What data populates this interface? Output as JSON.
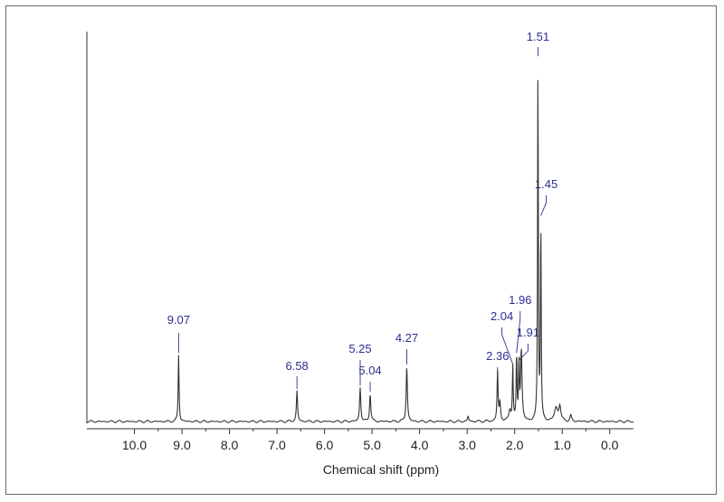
{
  "chart_data": {
    "type": "line",
    "title": "",
    "xlabel": "Chemical shift (ppm)",
    "ylabel": "",
    "x_reversed": true,
    "xlim": [
      11.0,
      -0.5
    ],
    "ylim": [
      0,
      1.0
    ],
    "x_ticks": [
      10.0,
      9.0,
      8.0,
      7.0,
      6.0,
      5.0,
      4.0,
      3.0,
      2.0,
      1.0,
      0.0
    ],
    "x_tick_labels": [
      "10.0",
      "9.0",
      "8.0",
      "7.0",
      "6.0",
      "5.0",
      "4.0",
      "3.0",
      "2.0",
      "1.0",
      "0.0"
    ],
    "grid": false,
    "line_color": "#333333",
    "label_color": "#2b2f8f",
    "peaks": [
      {
        "x": 9.07,
        "label": "9.07",
        "height": 0.18,
        "width": 0.022
      },
      {
        "x": 6.58,
        "label": "6.58",
        "height": 0.083,
        "width": 0.028
      },
      {
        "x": 5.25,
        "label": "5.25",
        "height": 0.092,
        "width": 0.03
      },
      {
        "x": 5.04,
        "label": "5.04",
        "height": 0.076,
        "width": 0.03
      },
      {
        "x": 4.27,
        "label": "4.27",
        "height": 0.149,
        "width": 0.03
      },
      {
        "x": 2.36,
        "label": "2.36",
        "height": 0.134,
        "width": 0.025
      },
      {
        "x": 2.04,
        "label": "2.04",
        "height": 0.15,
        "width": 0.02
      },
      {
        "x": 1.96,
        "label": "1.96",
        "height": 0.18,
        "width": 0.02
      },
      {
        "x": 1.91,
        "label": "1.91",
        "height": 0.16,
        "width": 0.02
      },
      {
        "x": 1.51,
        "label": "1.51",
        "height": 0.98,
        "width": 0.018
      },
      {
        "x": 1.45,
        "label": "1.45",
        "height": 0.55,
        "width": 0.018
      }
    ],
    "minor_features": [
      {
        "x": 2.98,
        "height": 0.014,
        "width": 0.03
      },
      {
        "x": 2.31,
        "height": 0.05,
        "width": 0.03
      },
      {
        "x": 2.1,
        "height": 0.03,
        "width": 0.05
      },
      {
        "x": 1.86,
        "height": 0.19,
        "width": 0.035
      },
      {
        "x": 1.13,
        "height": 0.035,
        "width": 0.08
      },
      {
        "x": 1.05,
        "height": 0.04,
        "width": 0.05
      },
      {
        "x": 0.82,
        "height": 0.015,
        "width": 0.04
      }
    ]
  }
}
